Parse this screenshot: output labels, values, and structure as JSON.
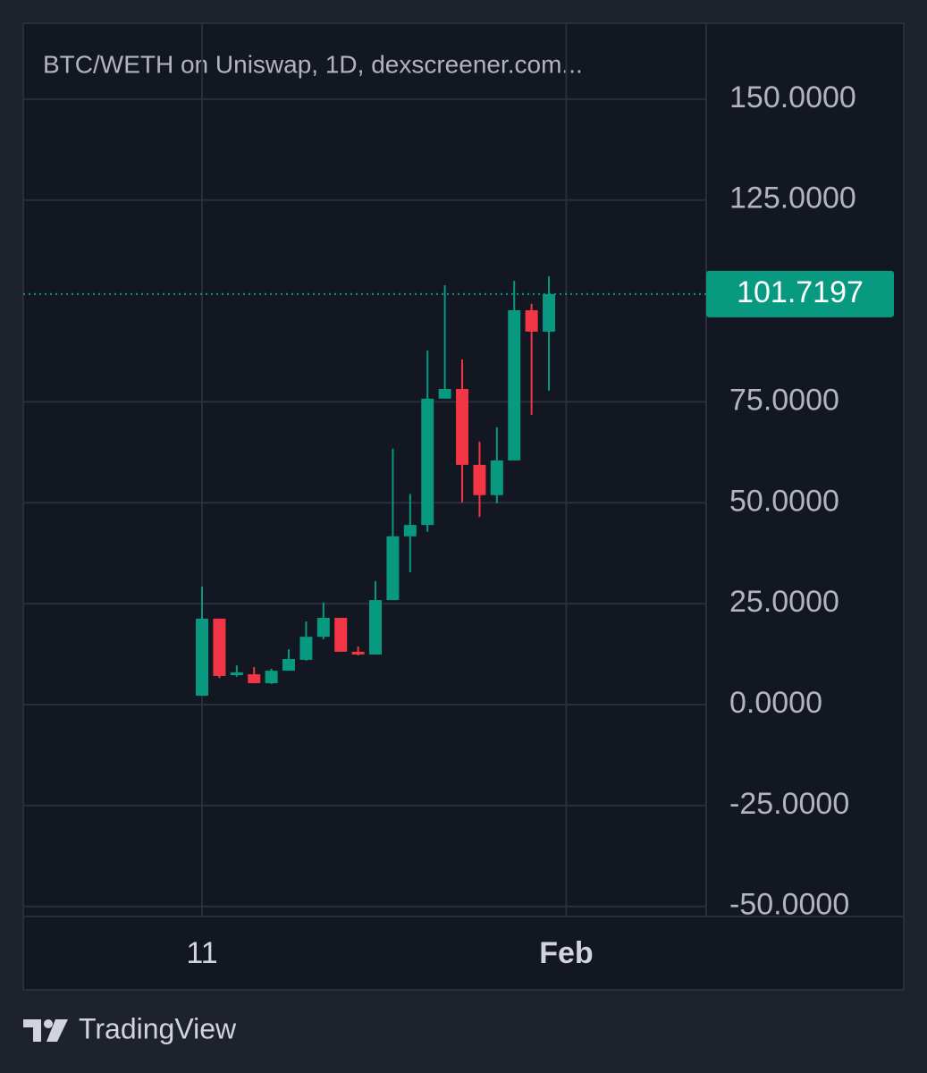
{
  "chart_data": {
    "type": "candlestick",
    "title": "BTC/WETH on Uniswap, 1D, dexscreener.com...",
    "x": [
      11,
      12,
      13,
      14,
      15,
      16,
      17,
      18,
      19,
      20,
      21,
      22,
      23,
      24,
      25,
      26,
      27,
      28,
      29,
      30,
      31
    ],
    "open": [
      2.2,
      21.3,
      7.3,
      7.5,
      5.3,
      8.4,
      11.1,
      16.8,
      21.5,
      13.1,
      12.4,
      25.9,
      41.7,
      44.5,
      75.8,
      78.2,
      59.4,
      51.9,
      60.5,
      97.7,
      92.4
    ],
    "high": [
      29.2,
      21.3,
      9.7,
      9.3,
      8.9,
      13.7,
      20.6,
      25.3,
      21.5,
      14.4,
      30.6,
      63.4,
      52.2,
      87.7,
      103.9,
      85.5,
      65.1,
      68.7,
      105.0,
      99.3,
      106.1
    ],
    "low": [
      2.2,
      6.6,
      6.9,
      5.3,
      5.1,
      8.4,
      10.9,
      16.2,
      13.1,
      12.2,
      12.4,
      25.9,
      32.8,
      42.8,
      75.8,
      50.1,
      46.5,
      49.9,
      60.5,
      71.8,
      77.8
    ],
    "close": [
      21.3,
      7.1,
      8.0,
      5.3,
      8.4,
      11.3,
      16.8,
      21.5,
      13.1,
      12.4,
      25.9,
      41.7,
      44.5,
      75.8,
      78.2,
      59.4,
      51.9,
      60.5,
      97.7,
      92.4,
      101.7197
    ],
    "up_color": "#089981",
    "down_color": "#f23645",
    "xlim": [
      0.69,
      40.07
    ],
    "xticks": [
      {
        "value": 11,
        "label": "11"
      },
      {
        "value": 32,
        "label": "Feb"
      }
    ],
    "ylim": [
      -52.5,
      168.8
    ],
    "yticks": [
      {
        "value": -50,
        "label": "-50.0000"
      },
      {
        "value": -25,
        "label": "-25.0000"
      },
      {
        "value": 0,
        "label": "0.0000"
      },
      {
        "value": 25,
        "label": "25.0000"
      },
      {
        "value": 50,
        "label": "50.0000"
      },
      {
        "value": 75,
        "label": "75.0000"
      },
      {
        "value": 125,
        "label": "125.0000"
      },
      {
        "value": 150,
        "label": "150.0000"
      }
    ],
    "grid": true,
    "attribution": "TradingView"
  }
}
